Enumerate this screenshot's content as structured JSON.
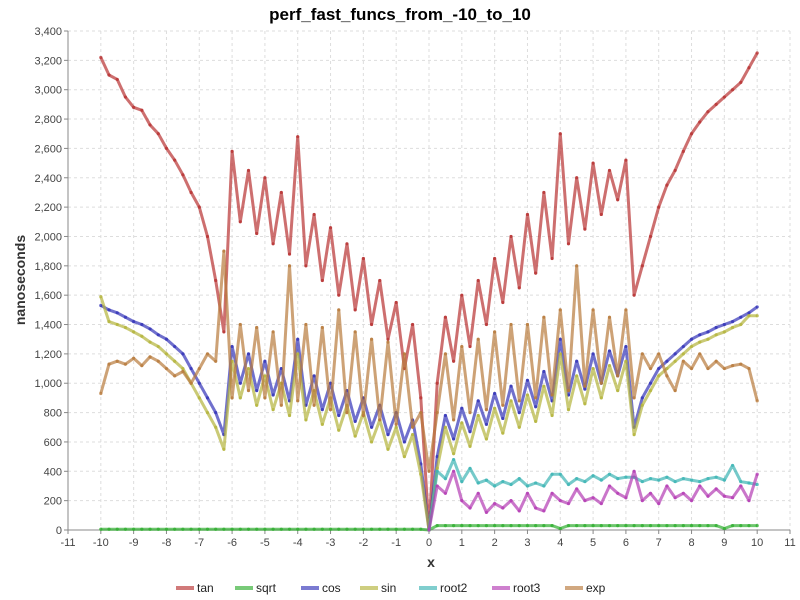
{
  "chart_data": {
    "type": "line",
    "title": "perf_fast_funcs_from_-10_to_10",
    "xlabel": "x",
    "ylabel": "nanoseconds",
    "xlim": [
      -11,
      11
    ],
    "ylim": [
      0,
      3400
    ],
    "xticks": [
      -11,
      -10,
      -9,
      -8,
      -7,
      -6,
      -5,
      -4,
      -3,
      -2,
      -1,
      0,
      1,
      2,
      3,
      4,
      5,
      6,
      7,
      8,
      9,
      10,
      11
    ],
    "yticks": [
      0,
      200,
      400,
      600,
      800,
      1000,
      1200,
      1400,
      1600,
      1800,
      2000,
      2200,
      2400,
      2600,
      2800,
      3000,
      3200,
      3400
    ],
    "ytick_labels": [
      "0",
      "200",
      "400",
      "600",
      "800",
      "1,000",
      "1,200",
      "1,400",
      "1,600",
      "1,800",
      "2,000",
      "2,200",
      "2,400",
      "2,600",
      "2,800",
      "3,000",
      "3,200",
      "3,400"
    ],
    "grid": true,
    "legend_position": "bottom",
    "x_start": -10,
    "x_step": 0.25,
    "series": [
      {
        "name": "tan",
        "color": "#b83232",
        "values": [
          3220,
          3100,
          3070,
          2950,
          2880,
          2860,
          2760,
          2700,
          2600,
          2520,
          2420,
          2300,
          2200,
          2000,
          1700,
          1350,
          2580,
          2100,
          2450,
          2020,
          2400,
          1950,
          2300,
          1880,
          2680,
          1800,
          2150,
          1700,
          2060,
          1600,
          1950,
          1500,
          1850,
          1400,
          1700,
          1300,
          1550,
          1100,
          1400,
          900,
          0,
          1000,
          1450,
          1150,
          1600,
          1250,
          1700,
          1400,
          1850,
          1550,
          2000,
          1650,
          2150,
          1750,
          2300,
          1850,
          2700,
          1950,
          2400,
          2050,
          2500,
          2150,
          2450,
          2250,
          2520,
          1600,
          1800,
          2000,
          2200,
          2350,
          2450,
          2580,
          2700,
          2780,
          2850,
          2900,
          2950,
          3000,
          3050,
          3150,
          3250
        ]
      },
      {
        "name": "sqrt",
        "color": "#2fae2f",
        "values": [
          5,
          5,
          5,
          5,
          5,
          5,
          5,
          5,
          5,
          5,
          5,
          5,
          5,
          5,
          5,
          5,
          5,
          5,
          5,
          5,
          5,
          5,
          5,
          5,
          5,
          5,
          5,
          5,
          5,
          5,
          5,
          5,
          5,
          5,
          5,
          5,
          5,
          5,
          5,
          5,
          0,
          30,
          30,
          30,
          30,
          30,
          30,
          30,
          30,
          30,
          30,
          30,
          30,
          30,
          30,
          30,
          10,
          30,
          30,
          30,
          30,
          30,
          30,
          30,
          30,
          30,
          30,
          30,
          30,
          30,
          30,
          30,
          30,
          30,
          30,
          30,
          10,
          30,
          30,
          30,
          30
        ]
      },
      {
        "name": "cos",
        "color": "#3333b8",
        "values": [
          1530,
          1500,
          1480,
          1450,
          1420,
          1400,
          1370,
          1330,
          1300,
          1250,
          1200,
          1100,
          1000,
          900,
          800,
          650,
          1250,
          1000,
          1200,
          950,
          1150,
          920,
          1100,
          880,
          1300,
          850,
          1050,
          820,
          1000,
          780,
          950,
          740,
          900,
          700,
          850,
          650,
          800,
          600,
          750,
          450,
          0,
          500,
          780,
          620,
          830,
          670,
          880,
          720,
          930,
          760,
          980,
          800,
          1020,
          840,
          1080,
          880,
          1300,
          920,
          1150,
          960,
          1200,
          1000,
          1220,
          1050,
          1250,
          700,
          900,
          1000,
          1100,
          1150,
          1200,
          1250,
          1300,
          1330,
          1350,
          1380,
          1400,
          1420,
          1450,
          1480,
          1520
        ]
      },
      {
        "name": "sin",
        "color": "#b4b43c",
        "values": [
          1590,
          1420,
          1400,
          1380,
          1350,
          1320,
          1280,
          1250,
          1200,
          1150,
          1100,
          1000,
          900,
          800,
          700,
          550,
          1150,
          900,
          1100,
          850,
          1050,
          820,
          1000,
          780,
          1200,
          750,
          950,
          720,
          900,
          680,
          850,
          640,
          800,
          600,
          750,
          550,
          700,
          500,
          650,
          380,
          0,
          420,
          700,
          520,
          730,
          570,
          780,
          620,
          830,
          660,
          880,
          700,
          920,
          740,
          980,
          780,
          1200,
          820,
          1050,
          860,
          1100,
          900,
          1120,
          950,
          1150,
          650,
          850,
          950,
          1050,
          1100,
          1150,
          1200,
          1250,
          1280,
          1300,
          1330,
          1350,
          1380,
          1400,
          1460,
          1460
        ]
      },
      {
        "name": "root2",
        "color": "#3cb4b4",
        "values": [
          null,
          null,
          null,
          null,
          null,
          null,
          null,
          null,
          null,
          null,
          null,
          null,
          null,
          null,
          null,
          null,
          null,
          null,
          null,
          null,
          null,
          null,
          null,
          null,
          null,
          null,
          null,
          null,
          null,
          null,
          null,
          null,
          null,
          null,
          null,
          null,
          null,
          null,
          null,
          null,
          0,
          400,
          350,
          480,
          330,
          420,
          320,
          340,
          300,
          330,
          310,
          350,
          300,
          320,
          300,
          380,
          380,
          310,
          350,
          330,
          370,
          340,
          380,
          350,
          360,
          360,
          330,
          350,
          340,
          360,
          330,
          350,
          340,
          330,
          350,
          360,
          340,
          440,
          330,
          320,
          310
        ]
      },
      {
        "name": "root3",
        "color": "#b43cb4",
        "values": [
          null,
          null,
          null,
          null,
          null,
          null,
          null,
          null,
          null,
          null,
          null,
          null,
          null,
          null,
          null,
          null,
          null,
          null,
          null,
          null,
          null,
          null,
          null,
          null,
          null,
          null,
          null,
          null,
          null,
          null,
          null,
          null,
          null,
          null,
          null,
          null,
          null,
          null,
          null,
          null,
          0,
          300,
          250,
          400,
          200,
          150,
          250,
          120,
          180,
          150,
          200,
          130,
          250,
          150,
          130,
          250,
          200,
          180,
          280,
          200,
          220,
          180,
          300,
          250,
          220,
          400,
          200,
          250,
          180,
          300,
          220,
          250,
          200,
          300,
          230,
          280,
          230,
          220,
          300,
          200,
          380
        ]
      },
      {
        "name": "exp",
        "color": "#b87a3c",
        "values": [
          930,
          1130,
          1150,
          1130,
          1170,
          1120,
          1180,
          1150,
          1100,
          1050,
          1080,
          1000,
          1100,
          1200,
          1150,
          1900,
          900,
          1400,
          950,
          1380,
          900,
          1350,
          850,
          1800,
          880,
          1400,
          850,
          1380,
          820,
          1500,
          800,
          1350,
          780,
          1300,
          750,
          1280,
          720,
          1200,
          700,
          800,
          400,
          800,
          1200,
          750,
          1250,
          800,
          1300,
          820,
          1350,
          850,
          1400,
          880,
          1400,
          900,
          1450,
          920,
          1500,
          950,
          1800,
          980,
          1500,
          1000,
          1450,
          1050,
          1500,
          900,
          1200,
          1100,
          1200,
          1050,
          950,
          1150,
          1100,
          1200,
          1100,
          1150,
          1100,
          1120,
          1130,
          1100,
          880
        ]
      }
    ]
  }
}
